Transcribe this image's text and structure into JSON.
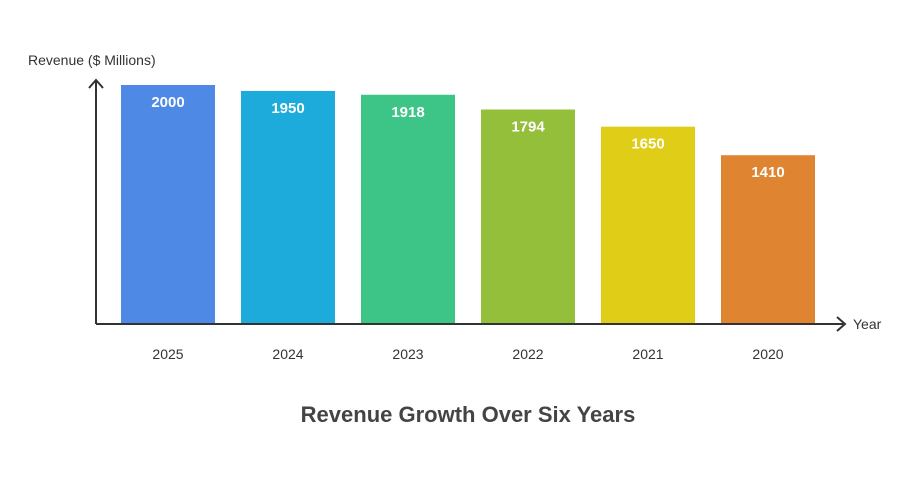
{
  "chart_data": {
    "type": "bar",
    "title": "Revenue Growth Over Six Years",
    "xlabel": "Year",
    "ylabel": "Revenue ($ Millions)",
    "categories": [
      "2025",
      "2024",
      "2023",
      "2022",
      "2021",
      "2020"
    ],
    "values": [
      2000,
      1950,
      1918,
      1794,
      1650,
      1410
    ],
    "colors": [
      "#4D89E5",
      "#1DABDB",
      "#3DC587",
      "#93BF3B",
      "#E0CD18",
      "#DF8430"
    ],
    "ylim": [
      0,
      2000
    ],
    "grid": false,
    "legend": "none",
    "data_labels": true
  }
}
